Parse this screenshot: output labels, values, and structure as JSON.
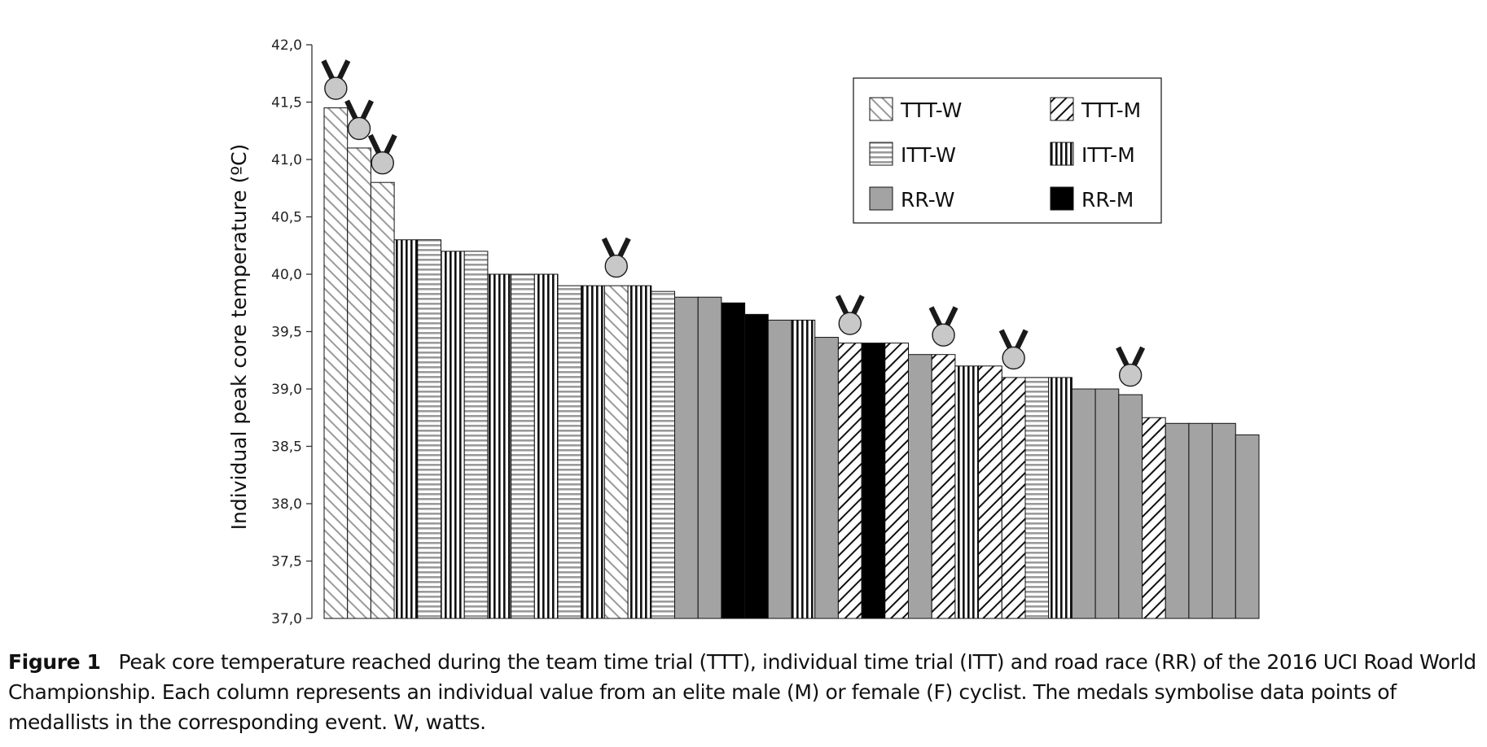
{
  "chart_data": {
    "type": "bar",
    "ylabel": "Individual peak core temperature (ºC)",
    "xlabel": "",
    "ylim": [
      37.0,
      42.0
    ],
    "yticks": [
      "42,0",
      "41,5",
      "41,0",
      "40,5",
      "40,0",
      "39,5",
      "39,0",
      "38,5",
      "38,0",
      "37,5",
      "37,0"
    ],
    "legend_position": "top-right",
    "legend": [
      {
        "key": "TTT-W",
        "label": "TTT-W"
      },
      {
        "key": "TTT-M",
        "label": "TTT-M"
      },
      {
        "key": "ITT-W",
        "label": "ITT-W"
      },
      {
        "key": "ITT-M",
        "label": "ITT-M"
      },
      {
        "key": "RR-W",
        "label": "RR-W"
      },
      {
        "key": "RR-M",
        "label": "RR-M"
      }
    ],
    "bars": [
      {
        "group": "TTT-W",
        "value": 41.45,
        "medal": true
      },
      {
        "group": "TTT-W",
        "value": 41.1,
        "medal": true
      },
      {
        "group": "TTT-W",
        "value": 40.8,
        "medal": true
      },
      {
        "group": "ITT-M",
        "value": 40.3,
        "medal": false
      },
      {
        "group": "ITT-W",
        "value": 40.3,
        "medal": false
      },
      {
        "group": "ITT-M",
        "value": 40.2,
        "medal": false
      },
      {
        "group": "ITT-W",
        "value": 40.2,
        "medal": false
      },
      {
        "group": "ITT-M",
        "value": 40.0,
        "medal": false
      },
      {
        "group": "ITT-W",
        "value": 40.0,
        "medal": false
      },
      {
        "group": "ITT-M",
        "value": 40.0,
        "medal": false
      },
      {
        "group": "ITT-W",
        "value": 39.9,
        "medal": false
      },
      {
        "group": "ITT-M",
        "value": 39.9,
        "medal": false
      },
      {
        "group": "TTT-W",
        "value": 39.9,
        "medal": true
      },
      {
        "group": "ITT-M",
        "value": 39.9,
        "medal": false
      },
      {
        "group": "ITT-W",
        "value": 39.85,
        "medal": false
      },
      {
        "group": "RR-W",
        "value": 39.8,
        "medal": false
      },
      {
        "group": "RR-W",
        "value": 39.8,
        "medal": false
      },
      {
        "group": "RR-M",
        "value": 39.75,
        "medal": false
      },
      {
        "group": "RR-M",
        "value": 39.65,
        "medal": false
      },
      {
        "group": "RR-W",
        "value": 39.6,
        "medal": false
      },
      {
        "group": "ITT-M",
        "value": 39.6,
        "medal": false
      },
      {
        "group": "RR-W",
        "value": 39.45,
        "medal": false
      },
      {
        "group": "TTT-M",
        "value": 39.4,
        "medal": true
      },
      {
        "group": "RR-M",
        "value": 39.4,
        "medal": false
      },
      {
        "group": "TTT-M",
        "value": 39.4,
        "medal": false
      },
      {
        "group": "RR-W",
        "value": 39.3,
        "medal": false
      },
      {
        "group": "TTT-M",
        "value": 39.3,
        "medal": true
      },
      {
        "group": "ITT-M",
        "value": 39.2,
        "medal": false
      },
      {
        "group": "TTT-M",
        "value": 39.2,
        "medal": false
      },
      {
        "group": "TTT-M",
        "value": 39.1,
        "medal": true
      },
      {
        "group": "ITT-W",
        "value": 39.1,
        "medal": false
      },
      {
        "group": "ITT-M",
        "value": 39.1,
        "medal": false
      },
      {
        "group": "RR-W",
        "value": 39.0,
        "medal": false
      },
      {
        "group": "RR-W",
        "value": 39.0,
        "medal": false
      },
      {
        "group": "RR-W",
        "value": 38.95,
        "medal": true
      },
      {
        "group": "TTT-M",
        "value": 38.75,
        "medal": false
      },
      {
        "group": "RR-W",
        "value": 38.7,
        "medal": false
      },
      {
        "group": "RR-W",
        "value": 38.7,
        "medal": false
      },
      {
        "group": "RR-W",
        "value": 38.7,
        "medal": false
      },
      {
        "group": "RR-W",
        "value": 38.6,
        "medal": false
      }
    ]
  },
  "caption": {
    "label": "Figure 1",
    "text": "Peak core temperature reached during the team time trial (TTT), individual time trial (ITT) and road race (RR) of the 2016 UCI Road World Championship. Each column represents an individual value from an elite male (M) or female (F) cyclist. The medals symbolise data points of medallists in the corresponding event. W, watts."
  }
}
